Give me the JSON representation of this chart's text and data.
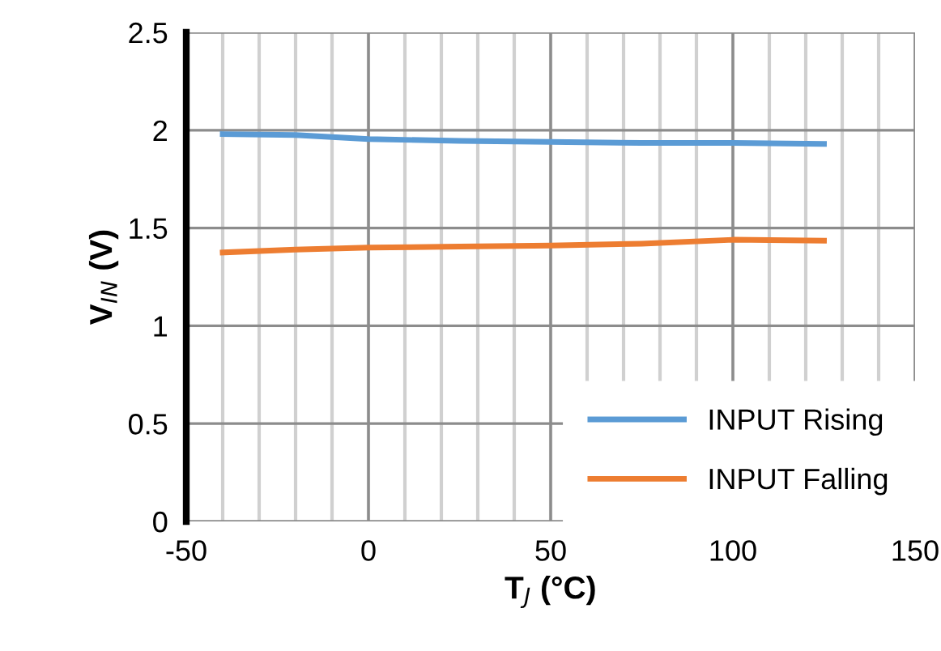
{
  "chart_data": {
    "type": "line",
    "xlabel": "T$_{J}$ (°C)",
    "ylabel": "V$_{IN}$ (V)",
    "x": [
      -40,
      -20,
      0,
      25,
      50,
      75,
      100,
      125
    ],
    "series": [
      {
        "name": "INPUT Rising",
        "color": "#5b9bd5",
        "values": [
          1.98,
          1.975,
          1.955,
          1.945,
          1.94,
          1.935,
          1.935,
          1.93
        ]
      },
      {
        "name": "INPUT Falling",
        "color": "#ed7d31",
        "values": [
          1.375,
          1.39,
          1.4,
          1.405,
          1.41,
          1.42,
          1.44,
          1.435
        ]
      }
    ],
    "xlim": [
      -50,
      150
    ],
    "xticks": [
      -50,
      0,
      50,
      100,
      150
    ],
    "ylim": [
      0,
      2.5
    ],
    "yticks": [
      0,
      0.5,
      1,
      1.5,
      2,
      2.5
    ],
    "grid": true,
    "legend": "bottom right",
    "marker": "none",
    "line_style": "solid"
  }
}
